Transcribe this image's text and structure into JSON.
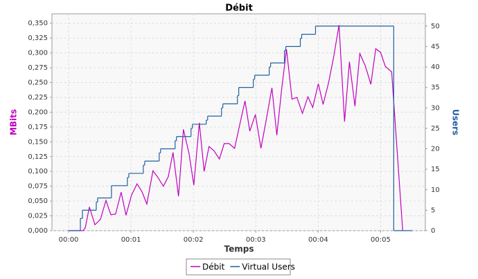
{
  "chart_data": {
    "type": "line",
    "title": "Débit",
    "x_label": "Temps",
    "y_label": "MBits",
    "y2_label": "Users",
    "xlim": [
      -16,
      343
    ],
    "xticks": [
      {
        "value": 0,
        "label": "00:00"
      },
      {
        "value": 60,
        "label": "00:01"
      },
      {
        "value": 120,
        "label": "00:02"
      },
      {
        "value": 180,
        "label": "00:03"
      },
      {
        "value": 240,
        "label": "00:04"
      },
      {
        "value": 300,
        "label": "00:05"
      }
    ],
    "ylim": [
      0,
      0.366
    ],
    "yticks": [
      {
        "value": 0,
        "label": "0,000"
      },
      {
        "value": 0.025,
        "label": "0,025"
      },
      {
        "value": 0.05,
        "label": "0,050"
      },
      {
        "value": 0.075,
        "label": "0,075"
      },
      {
        "value": 0.1,
        "label": "0,100"
      },
      {
        "value": 0.125,
        "label": "0,125"
      },
      {
        "value": 0.15,
        "label": "0,150"
      },
      {
        "value": 0.175,
        "label": "0,175"
      },
      {
        "value": 0.2,
        "label": "0,200"
      },
      {
        "value": 0.225,
        "label": "0,225"
      },
      {
        "value": 0.25,
        "label": "0,250"
      },
      {
        "value": 0.275,
        "label": "0,275"
      },
      {
        "value": 0.3,
        "label": "0,300"
      },
      {
        "value": 0.325,
        "label": "0,325"
      },
      {
        "value": 0.35,
        "label": "0,350"
      }
    ],
    "y2lim": [
      0,
      53
    ],
    "y2ticks": [
      0,
      5,
      10,
      15,
      20,
      25,
      30,
      35,
      40,
      45,
      50
    ],
    "grid": true,
    "series": [
      {
        "name": "Débit",
        "color": "#c000c0",
        "x": [
          0,
          14,
          16,
          20,
          25.3,
          30.6,
          35.9,
          40.6,
          45.2,
          50.5,
          55.2,
          60.5,
          65.8,
          70.5,
          75.2,
          81.1,
          85.8,
          91.1,
          95.8,
          100.4,
          105.7,
          110.4,
          115.7,
          120.4,
          125.7,
          130.3,
          135,
          139.7,
          145,
          149.6,
          154.3,
          159.6,
          164.3,
          169.6,
          174.2,
          179.6,
          184.9,
          189.5,
          195.5,
          200.2,
          204.8,
          209.5,
          214.8,
          219.5,
          224.8,
          230.1,
          234.7,
          240.1,
          244.7,
          250,
          254.7,
          260,
          265.3,
          270,
          275.3,
          280,
          285.3,
          290.6,
          295.3,
          299.9,
          304.6,
          310.6,
          321.2
        ],
        "values": [
          0,
          0,
          0.005,
          0.04,
          0.01,
          0.019,
          0.051,
          0.027,
          0.028,
          0.065,
          0.026,
          0.06,
          0.079,
          0.066,
          0.045,
          0.101,
          0.09,
          0.075,
          0.091,
          0.132,
          0.058,
          0.171,
          0.131,
          0.077,
          0.182,
          0.1,
          0.142,
          0.135,
          0.121,
          0.147,
          0.147,
          0.139,
          0.177,
          0.219,
          0.168,
          0.196,
          0.139,
          0.182,
          0.241,
          0.161,
          0.238,
          0.306,
          0.222,
          0.225,
          0.198,
          0.226,
          0.208,
          0.248,
          0.213,
          0.25,
          0.292,
          0.347,
          0.184,
          0.285,
          0.21,
          0.299,
          0.278,
          0.247,
          0.307,
          0.301,
          0.277,
          0.268,
          0
        ]
      },
      {
        "name": "Virtual Users",
        "color": "#1f5fa0",
        "axis": "y2",
        "step": true,
        "x": [
          0,
          11.3,
          13.3,
          26.6,
          27.9,
          41.2,
          56.5,
          57.9,
          71.8,
          73.2,
          87.1,
          88.4,
          102.4,
          103.7,
          117.7,
          119,
          132.3,
          133.7,
          147,
          148.3,
          162.3,
          163.6,
          177.6,
          178.9,
          192.9,
          194.2,
          207.5,
          208.8,
          222.8,
          224.1,
          237.4,
          312.6,
          330.5
        ],
        "values": [
          0,
          3,
          5,
          7,
          8,
          11,
          13,
          14,
          16,
          17,
          19,
          20,
          22,
          23,
          25,
          26,
          27,
          28,
          30,
          31,
          33,
          35,
          37,
          38,
          40,
          41,
          44,
          45,
          47,
          48,
          50,
          0,
          0
        ]
      }
    ]
  }
}
